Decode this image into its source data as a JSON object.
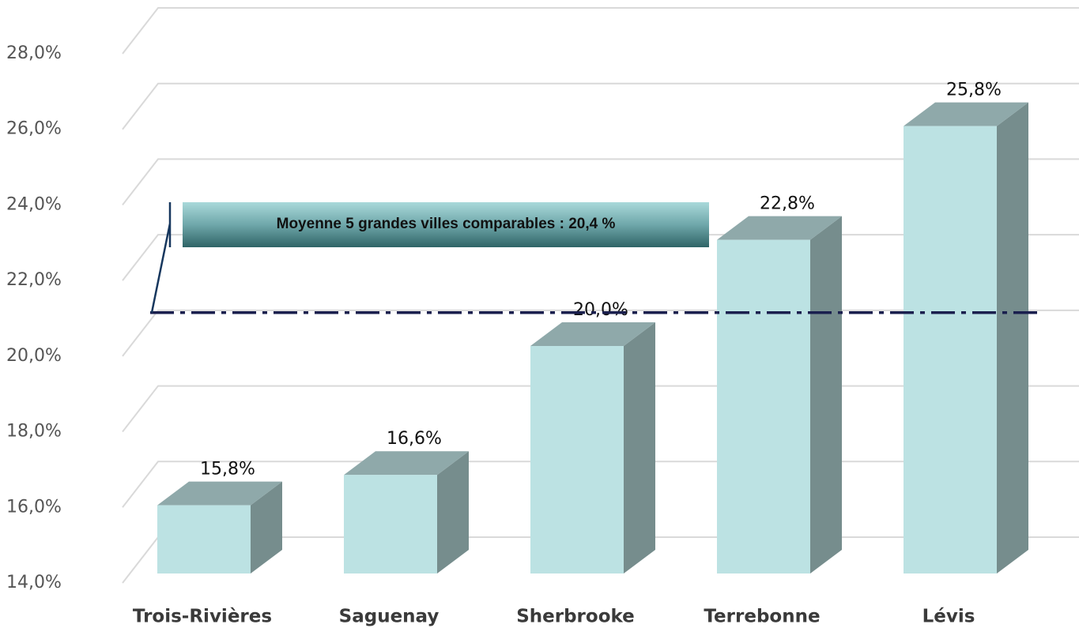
{
  "chart_data": {
    "type": "bar3d",
    "categories": [
      "Trois-Rivières",
      "Saguenay",
      "Sherbrooke",
      "Terrebonne",
      "Lévis"
    ],
    "values": [
      15.8,
      16.6,
      20.0,
      22.8,
      25.8
    ],
    "value_labels": [
      "15,8%",
      "16,6%",
      "20,0%",
      "22,8%",
      "25,8%"
    ],
    "color": "#bce2e3",
    "ylim": [
      14,
      28
    ],
    "yticks": [
      {
        "value": 14,
        "label": "14,0%"
      },
      {
        "value": 16,
        "label": "16,0%"
      },
      {
        "value": 18,
        "label": "18,0%"
      },
      {
        "value": 20,
        "label": "20,0%"
      },
      {
        "value": 22,
        "label": "22,0%"
      },
      {
        "value": 24,
        "label": "24,0%"
      },
      {
        "value": 26,
        "label": "26,0%"
      },
      {
        "value": 28,
        "label": "28,0%"
      }
    ],
    "grid": true,
    "reference_line": {
      "value": 20.4,
      "label": "Moyenne 5 grandes villes comparables : 20,4 %"
    }
  }
}
